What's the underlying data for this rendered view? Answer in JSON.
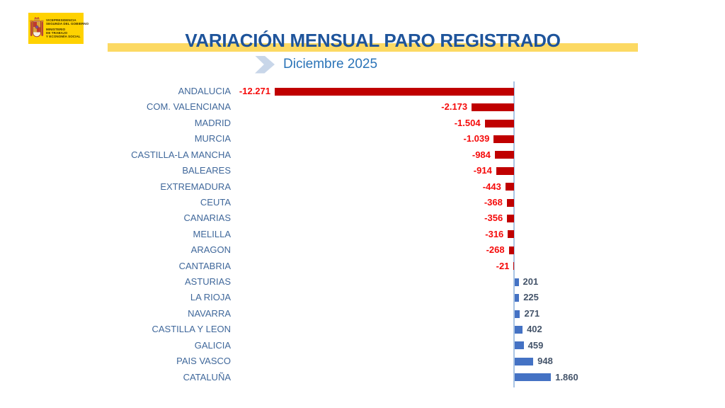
{
  "logo": {
    "bg_color": "#FFD200",
    "org_lines": [
      "VICEPRESIDENCIA",
      "SEGUNDA DEL GOBIERNO"
    ],
    "ministry_lines": [
      "MINISTERIO",
      "DE TRABAJO",
      "Y ECONOMÍA SOCIAL"
    ]
  },
  "header": {
    "title": "VARIACIÓN MENSUAL PARO REGISTRADO",
    "subtitle": "Diciembre 2025",
    "title_color": "#1E549B",
    "subtitle_color": "#2B74B8",
    "band_color": "#FCD963",
    "chevron_color": "#C8D6E9"
  },
  "chart_data": {
    "type": "bar",
    "orientation": "horizontal",
    "title": "VARIACIÓN MENSUAL PARO REGISTRADO",
    "subtitle": "Diciembre 2025",
    "categories": [
      "ANDALUCIA",
      "COM. VALENCIANA",
      "MADRID",
      "MURCIA",
      "CASTILLA-LA MANCHA",
      "BALEARES",
      "EXTREMADURA",
      "CEUTA",
      "CANARIAS",
      "MELILLA",
      "ARAGON",
      "CANTABRIA",
      "ASTURIAS",
      "LA RIOJA",
      "NAVARRA",
      "CASTILLA Y LEON",
      "GALICIA",
      "PAIS VASCO",
      "CATALUÑA"
    ],
    "values": [
      -12271,
      -2173,
      -1504,
      -1039,
      -984,
      -914,
      -443,
      -368,
      -356,
      -316,
      -268,
      -21,
      201,
      225,
      271,
      402,
      459,
      948,
      1860
    ],
    "value_labels": [
      "-12.271",
      "-2.173",
      "-1.504",
      "-1.039",
      "-984",
      "-914",
      "-443",
      "-368",
      "-356",
      "-316",
      "-268",
      "-21",
      "201",
      "225",
      "271",
      "402",
      "459",
      "948",
      "1.860"
    ],
    "xlim": [
      -12271,
      1860
    ],
    "grid": false,
    "legend": false,
    "negative_bar_color": "#C00000",
    "positive_bar_color": "#4472C4",
    "negative_value_color": "#F50A0A",
    "positive_value_color": "#44546A",
    "category_color": "#40689B",
    "axis_color": "#A9C4E4"
  }
}
